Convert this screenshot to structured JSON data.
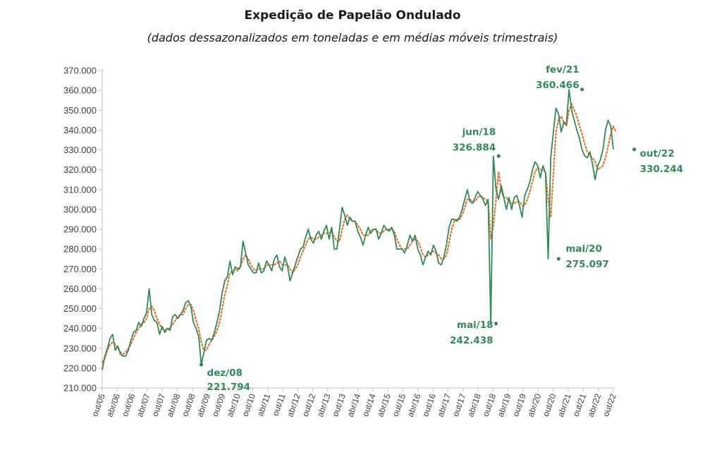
{
  "chart_data": {
    "type": "line",
    "title": "Expedição de Papelão Ondulado",
    "subtitle": "(dados dessazonalizados em toneladas e em médias móveis trimestrais)",
    "ylim": [
      210000,
      370000
    ],
    "y_ticks": [
      210000,
      220000,
      230000,
      240000,
      250000,
      260000,
      270000,
      280000,
      290000,
      300000,
      310000,
      320000,
      330000,
      340000,
      350000,
      360000,
      370000
    ],
    "y_tick_labels": [
      "210.000",
      "220.000",
      "230.000",
      "240.000",
      "250.000",
      "260.000",
      "270.000",
      "280.000",
      "290.000",
      "300.000",
      "310.000",
      "320.000",
      "330.000",
      "340.000",
      "350.000",
      "360.000",
      "370.000"
    ],
    "x_tick_labels": [
      "out/05",
      "abr/06",
      "out/06",
      "abr/07",
      "out/07",
      "abr/08",
      "out/08",
      "abr/09",
      "out/09",
      "abr/10",
      "out/10",
      "abr/11",
      "out/11",
      "abr/12",
      "out/12",
      "abr/13",
      "out/13",
      "abr/14",
      "out/14",
      "abr/15",
      "out/15",
      "abr/16",
      "out/16",
      "abr/17",
      "out/17",
      "abr/18",
      "out/18",
      "abr/19",
      "out/19",
      "abr/20",
      "out/20",
      "abr/21",
      "out/21",
      "abr/22",
      "out/22"
    ],
    "x_start": "out/05",
    "x_end": "out/22",
    "grid": false,
    "colors": {
      "series": "#2e8b57",
      "moving_average": "#e8742a",
      "annotation": "#2e8b57"
    },
    "series": [
      {
        "style": "solid",
        "values": [
          219000,
          226000,
          230000,
          235000,
          237000,
          229000,
          231000,
          227000,
          226000,
          226000,
          229000,
          234000,
          238000,
          239000,
          243000,
          241000,
          245000,
          248000,
          260000,
          247000,
          244000,
          243000,
          237000,
          241000,
          238000,
          240000,
          239000,
          246000,
          247000,
          245000,
          247000,
          249000,
          253000,
          254000,
          251000,
          243000,
          240000,
          236000,
          221794,
          228000,
          234000,
          235000,
          234000,
          238000,
          243000,
          249000,
          258000,
          264000,
          266000,
          274000,
          267000,
          271000,
          270000,
          271000,
          284000,
          278000,
          272000,
          270000,
          268000,
          268000,
          273000,
          268000,
          269000,
          274000,
          272000,
          269000,
          275000,
          277000,
          271000,
          269000,
          276000,
          272000,
          264000,
          268000,
          272000,
          276000,
          280000,
          281000,
          286000,
          290000,
          285000,
          283000,
          287000,
          289000,
          285000,
          289000,
          292000,
          285000,
          291000,
          280000,
          280000,
          290000,
          301000,
          297000,
          292000,
          296000,
          294000,
          294000,
          289000,
          286000,
          282000,
          287000,
          291000,
          288000,
          290000,
          290000,
          285000,
          288000,
          292000,
          290000,
          289000,
          291000,
          287000,
          280000,
          280000,
          280000,
          278000,
          282000,
          287000,
          284000,
          287000,
          280000,
          277000,
          272000,
          276000,
          279000,
          277000,
          282000,
          279000,
          273000,
          272000,
          276000,
          282000,
          291000,
          295000,
          295000,
          294000,
          296000,
          300000,
          305000,
          310000,
          304000,
          303000,
          306000,
          309000,
          307000,
          305000,
          302000,
          305000,
          242438,
          326884,
          310000,
          305000,
          312000,
          306000,
          300000,
          306000,
          300000,
          306000,
          307000,
          302000,
          296000,
          307000,
          310000,
          314000,
          320000,
          324000,
          322000,
          316000,
          322000,
          318000,
          275097,
          326000,
          339000,
          351000,
          348000,
          339000,
          344000,
          343000,
          360466,
          350000,
          345000,
          340000,
          336000,
          330000,
          327000,
          326000,
          329000,
          323000,
          315000,
          322000,
          325000,
          330000,
          340000,
          345000,
          342000,
          330244
        ]
      },
      {
        "style": "dotted",
        "values": [
          223000,
          225000,
          229000,
          232000,
          233000,
          232000,
          230000,
          228000,
          227000,
          228000,
          230000,
          232000,
          235000,
          238000,
          240000,
          242000,
          243000,
          245000,
          250000,
          251000,
          249000,
          245000,
          242000,
          240000,
          239000,
          240000,
          240000,
          242000,
          244000,
          246000,
          247000,
          247000,
          250000,
          252000,
          252000,
          249000,
          244000,
          240000,
          233000,
          229000,
          229000,
          232000,
          234000,
          236000,
          239000,
          243000,
          250000,
          257000,
          262000,
          268000,
          269000,
          270000,
          269000,
          271000,
          275000,
          277000,
          275000,
          272000,
          270000,
          269000,
          270000,
          270000,
          270000,
          272000,
          272000,
          272000,
          272000,
          273000,
          274000,
          272000,
          272000,
          272000,
          270000,
          268000,
          270000,
          272000,
          276000,
          279000,
          282000,
          285000,
          286000,
          285000,
          285000,
          286000,
          287000,
          288000,
          288000,
          288000,
          289000,
          286000,
          284000,
          284000,
          290000,
          295000,
          297000,
          295000,
          294000,
          294000,
          292000,
          290000,
          287000,
          287000,
          287000,
          289000,
          290000,
          290000,
          288000,
          288000,
          289000,
          290000,
          290000,
          290000,
          289000,
          285000,
          282000,
          280000,
          280000,
          280000,
          282000,
          284000,
          285000,
          284000,
          281000,
          277000,
          276000,
          277000,
          278000,
          279000,
          278000,
          277000,
          275000,
          275000,
          277000,
          283000,
          290000,
          294000,
          295000,
          295000,
          297000,
          301000,
          305000,
          305000,
          304000,
          304000,
          306000,
          307000,
          306000,
          305000,
          304000,
          285000,
          292000,
          305000,
          319000,
          309000,
          306000,
          306000,
          304000,
          303000,
          303000,
          304000,
          304000,
          302000,
          302000,
          305000,
          309000,
          314000,
          319000,
          321000,
          320000,
          320000,
          319000,
          305000,
          296000,
          318000,
          339000,
          345000,
          347000,
          344000,
          342000,
          350000,
          353000,
          350000,
          347000,
          342000,
          338000,
          333000,
          329000,
          327000,
          326000,
          324000,
          320000,
          321000,
          322000,
          326000,
          332000,
          338000,
          342000,
          339000
        ]
      }
    ],
    "annotations": [
      {
        "label": "dez/08",
        "value_label": "221.794",
        "x_index": 38,
        "value": 221794
      },
      {
        "label": "mai/18",
        "value_label": "242.438",
        "x_index": 151,
        "value": 242438
      },
      {
        "label": "jun/18",
        "value_label": "326.884",
        "x_index": 152,
        "value": 326884
      },
      {
        "label": "mai/20",
        "value_label": "275.097",
        "x_index": 175,
        "value": 275097
      },
      {
        "label": "fev/21",
        "value_label": "360.466",
        "x_index": 184,
        "value": 360466
      },
      {
        "label": "out/22",
        "value_label": "330.244",
        "x_index": 204,
        "value": 330244
      }
    ]
  }
}
